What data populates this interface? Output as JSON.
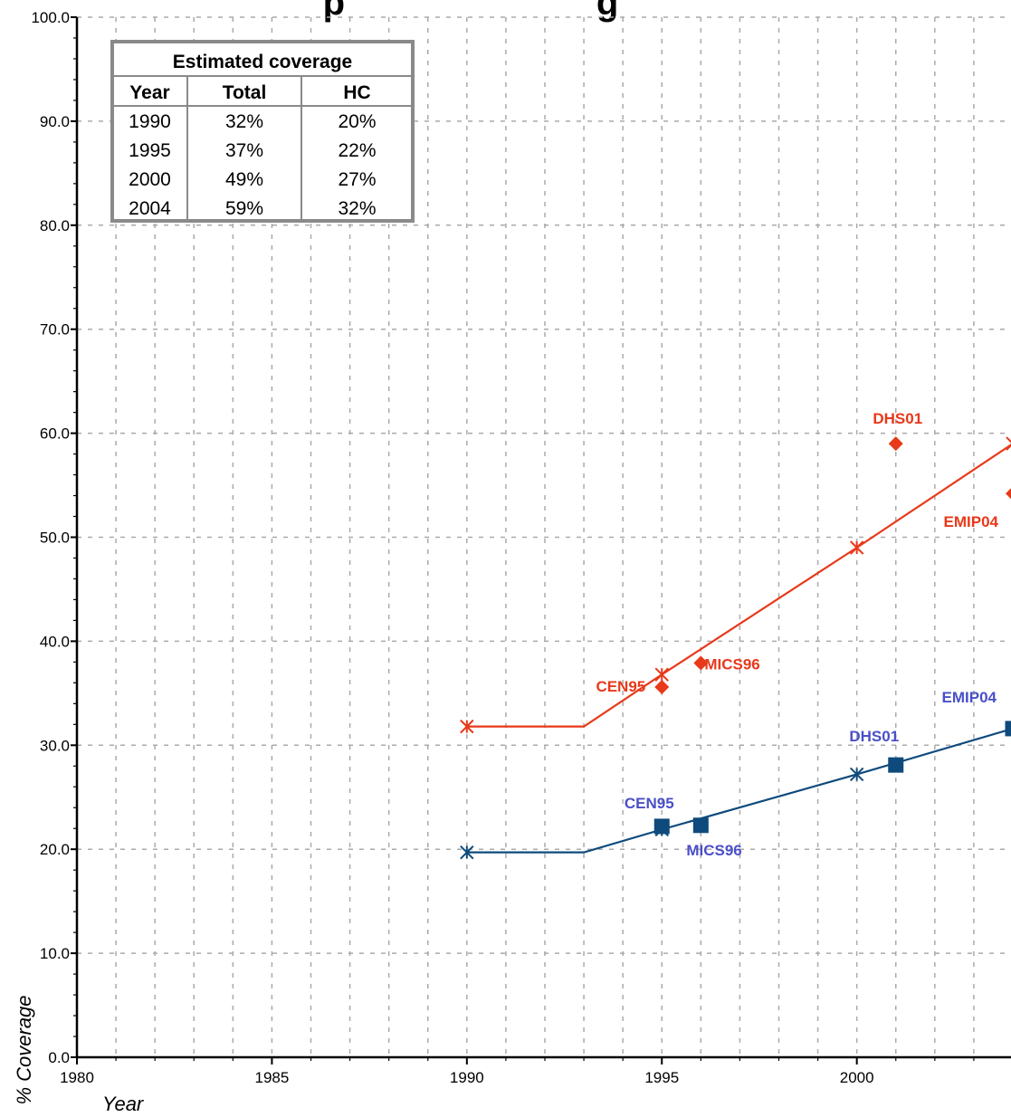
{
  "chart_data": {
    "type": "line",
    "title": "",
    "title_visible_fragment": "p                         g",
    "xlabel": "Year",
    "ylabel": "% Coverage",
    "xlim": [
      1980,
      2004
    ],
    "ylim": [
      0,
      100
    ],
    "x_ticks": [
      "1980",
      "1985",
      "1990",
      "1995",
      "2000"
    ],
    "y_ticks": [
      "0.0",
      "10.0",
      "20.0",
      "30.0",
      "40.0",
      "50.0",
      "60.0",
      "70.0",
      "80.0",
      "90.0",
      "100.0"
    ],
    "grid": true,
    "colors": {
      "total": "#e8391a",
      "hc": "#0e4a7c",
      "hc_labels": "#4a4fc8"
    },
    "series": [
      {
        "name": "Total",
        "color": "#e8391a",
        "line": [
          [
            1990,
            31.8
          ],
          [
            1993,
            31.8
          ],
          [
            1995,
            36.8
          ],
          [
            2000,
            49.0
          ],
          [
            2004,
            59.0
          ]
        ],
        "estimates": [
          [
            1990,
            31.8
          ],
          [
            1995,
            36.8
          ],
          [
            2000,
            49.0
          ],
          [
            2004,
            59.0
          ]
        ],
        "surveys": [
          {
            "label": "CEN95",
            "x": 1995,
            "y": 35.6
          },
          {
            "label": "MICS96",
            "x": 1996,
            "y": 37.9
          },
          {
            "label": "DHS01",
            "x": 2001,
            "y": 59.0
          },
          {
            "label": "EMIP04",
            "x": 2004,
            "y": 54.2
          }
        ]
      },
      {
        "name": "HC",
        "color": "#0e4a7c",
        "line": [
          [
            1990,
            19.7
          ],
          [
            1993,
            19.7
          ],
          [
            1995,
            21.9
          ],
          [
            2000,
            27.2
          ],
          [
            2004,
            31.6
          ]
        ],
        "estimates": [
          [
            1990,
            19.7
          ],
          [
            1995,
            21.9
          ],
          [
            2000,
            27.2
          ],
          [
            2004,
            31.6
          ]
        ],
        "surveys": [
          {
            "label": "CEN95",
            "x": 1995,
            "y": 22.2
          },
          {
            "label": "MICS96",
            "x": 1996,
            "y": 22.3
          },
          {
            "label": "DHS01",
            "x": 2001,
            "y": 28.1
          },
          {
            "label": "EMIP04",
            "x": 2004,
            "y": 31.6
          }
        ]
      }
    ],
    "table": {
      "title": "Estimated coverage",
      "headers": [
        "Year",
        "Total",
        "HC"
      ],
      "rows": [
        [
          "1990",
          "32%",
          "20%"
        ],
        [
          "1995",
          "37%",
          "22%"
        ],
        [
          "2000",
          "49%",
          "27%"
        ],
        [
          "2004",
          "59%",
          "32%"
        ]
      ]
    }
  }
}
